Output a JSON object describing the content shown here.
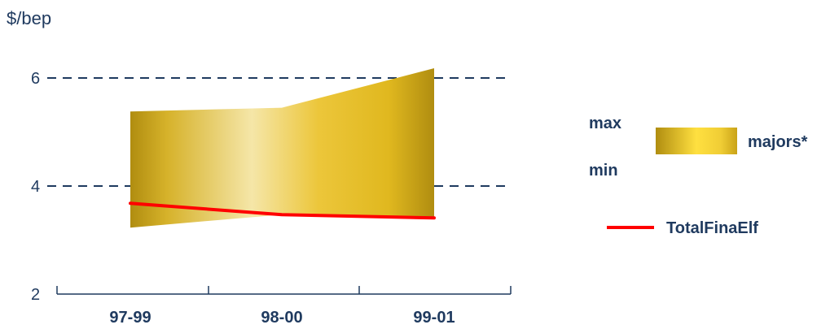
{
  "chart_data": {
    "type": "area",
    "ylabel": "$/bep",
    "ylim": [
      2,
      6.5
    ],
    "yticks": [
      2,
      4,
      6
    ],
    "ytick_labels": [
      "2",
      "4",
      "6"
    ],
    "dashed_gridlines": [
      4,
      6
    ],
    "categories": [
      "97-99",
      "98-00",
      "99-01"
    ],
    "series": [
      {
        "name": "majors*",
        "type": "range-band",
        "max": [
          5.38,
          5.45,
          6.18
        ],
        "min": [
          3.23,
          3.47,
          3.4
        ]
      },
      {
        "name": "TotalFinaElf",
        "type": "line",
        "values": [
          3.68,
          3.47,
          3.41
        ]
      }
    ],
    "legend": {
      "position": "right",
      "max_label": "max",
      "min_label": "min",
      "band_label": "majors*",
      "line_label": "TotalFinaElf"
    },
    "colors": {
      "band_dark": "#b08d10",
      "band_mid": "#e8c020",
      "band_light": "#f5e6a8",
      "band_legend_light": "#ffe040",
      "line": "#ff0000",
      "grid": "#1f3a5f",
      "axis": "#1f3a5f",
      "text": "#1f3a5f"
    }
  }
}
